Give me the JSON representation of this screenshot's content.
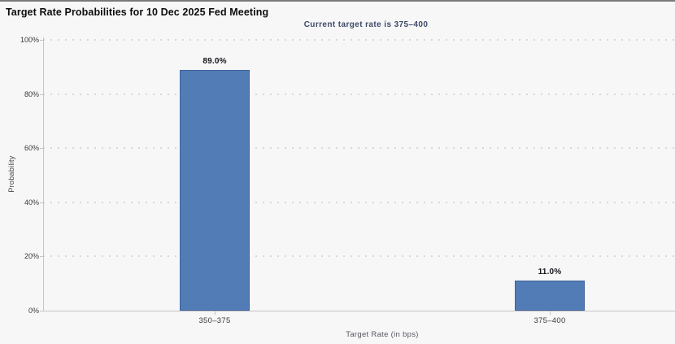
{
  "header": {
    "title": "Target Rate Probabilities for 10 Dec 2025 Fed Meeting",
    "subtitle": "Current target rate is 375–400"
  },
  "chart_data": {
    "type": "bar",
    "title": "Target Rate Probabilities for 10 Dec 2025 Fed Meeting",
    "subtitle": "Current target rate is 375–400",
    "categories": [
      "350–375",
      "375–400"
    ],
    "values": [
      89.0,
      11.0
    ],
    "value_labels": [
      "89.0%",
      "11.0%"
    ],
    "xlabel": "Target Rate (in bps)",
    "ylabel": "Probability",
    "ylim": [
      0,
      100
    ],
    "yticks": [
      0,
      20,
      40,
      60,
      80,
      100
    ],
    "ytick_labels": [
      "0%",
      "20%",
      "40%",
      "60%",
      "80%",
      "100%"
    ],
    "grid": "horizontal-dotted",
    "legend": "none",
    "colors": {
      "bar_fill": "#527cb5",
      "bar_border": "#3e629c",
      "background": "#f7f7f8",
      "gridline": "#d8d8d8",
      "axis": "#c4c4c4",
      "subtitle_text": "#3d4a68"
    }
  }
}
